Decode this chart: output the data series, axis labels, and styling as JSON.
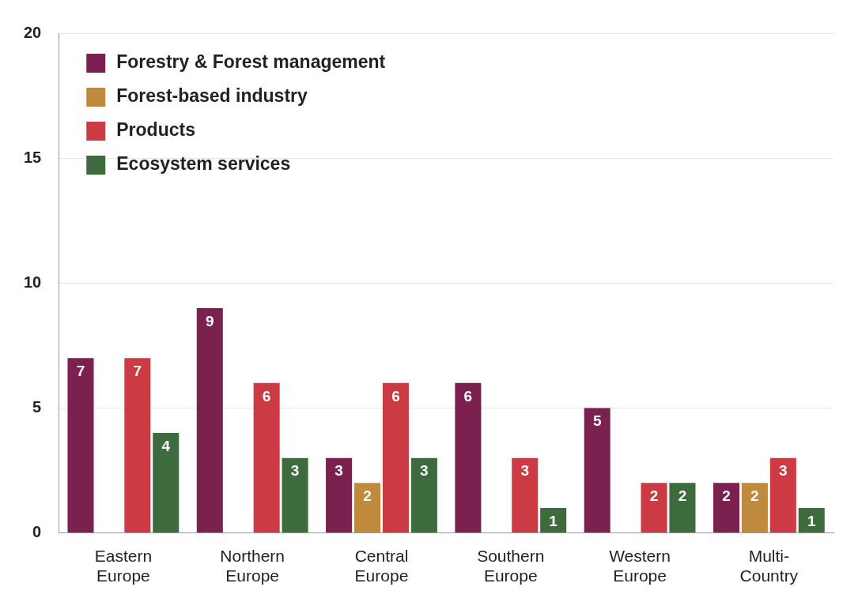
{
  "chart_data": {
    "type": "bar",
    "categories": [
      "Eastern Europe",
      "Northern Europe",
      "Central Europe",
      "Southern Europe",
      "Western Europe",
      "Multi-Country"
    ],
    "series": [
      {
        "name": "Forestry & Forest management",
        "color": "#7a2150",
        "values": [
          7,
          9,
          3,
          6,
          5,
          2
        ]
      },
      {
        "name": "Forest-based industry",
        "color": "#c08a3e",
        "values": [
          null,
          null,
          2,
          null,
          null,
          2
        ]
      },
      {
        "name": "Products",
        "color": "#cc3a44",
        "values": [
          7,
          6,
          6,
          3,
          2,
          3
        ]
      },
      {
        "name": "Ecosystem services",
        "color": "#3d6b3d",
        "values": [
          4,
          3,
          3,
          1,
          2,
          1
        ]
      }
    ],
    "ylim": [
      0,
      20
    ],
    "yticks": [
      0,
      5,
      10,
      15,
      20
    ],
    "grid": "y",
    "legend": "top left",
    "data_labels": true
  }
}
